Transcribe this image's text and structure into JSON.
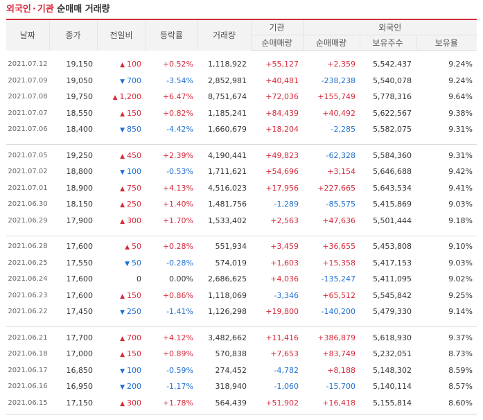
{
  "title": {
    "part1": "외국인",
    "sep": "·",
    "part2": "기관",
    "part3": "순매매 거래량"
  },
  "headers": {
    "date": "날짜",
    "close": "종가",
    "change": "전일비",
    "rate": "등락률",
    "volume": "거래량",
    "inst_group": "기관",
    "inst_net": "순매매량",
    "foreign_group": "외국인",
    "foreign_net": "순매매량",
    "foreign_holding": "보유주수",
    "foreign_ratio": "보유율"
  },
  "colors": {
    "up": "#d6293a",
    "down": "#1e6fd1"
  },
  "groups": [
    [
      {
        "date": "2021.07.12",
        "close": "19,150",
        "dir": "up",
        "change": "100",
        "rate": "+0.52%",
        "volume": "1,118,922",
        "inst": "+55,127",
        "foreign": "+2,359",
        "holding": "5,542,437",
        "ratio": "9.24%"
      },
      {
        "date": "2021.07.09",
        "close": "19,050",
        "dir": "down",
        "change": "700",
        "rate": "-3.54%",
        "volume": "2,852,981",
        "inst": "+40,481",
        "foreign": "-238,238",
        "holding": "5,540,078",
        "ratio": "9.24%"
      },
      {
        "date": "2021.07.08",
        "close": "19,750",
        "dir": "up",
        "change": "1,200",
        "rate": "+6.47%",
        "volume": "8,751,674",
        "inst": "+72,036",
        "foreign": "+155,749",
        "holding": "5,778,316",
        "ratio": "9.64%"
      },
      {
        "date": "2021.07.07",
        "close": "18,550",
        "dir": "up",
        "change": "150",
        "rate": "+0.82%",
        "volume": "1,185,241",
        "inst": "+84,439",
        "foreign": "+40,492",
        "holding": "5,622,567",
        "ratio": "9.38%"
      },
      {
        "date": "2021.07.06",
        "close": "18,400",
        "dir": "down",
        "change": "850",
        "rate": "-4.42%",
        "volume": "1,660,679",
        "inst": "+18,204",
        "foreign": "-2,285",
        "holding": "5,582,075",
        "ratio": "9.31%"
      }
    ],
    [
      {
        "date": "2021.07.05",
        "close": "19,250",
        "dir": "up",
        "change": "450",
        "rate": "+2.39%",
        "volume": "4,190,441",
        "inst": "+49,823",
        "foreign": "-62,328",
        "holding": "5,584,360",
        "ratio": "9.31%"
      },
      {
        "date": "2021.07.02",
        "close": "18,800",
        "dir": "down",
        "change": "100",
        "rate": "-0.53%",
        "volume": "1,711,621",
        "inst": "+54,696",
        "foreign": "+3,154",
        "holding": "5,646,688",
        "ratio": "9.42%"
      },
      {
        "date": "2021.07.01",
        "close": "18,900",
        "dir": "up",
        "change": "750",
        "rate": "+4.13%",
        "volume": "4,516,023",
        "inst": "+17,956",
        "foreign": "+227,665",
        "holding": "5,643,534",
        "ratio": "9.41%"
      },
      {
        "date": "2021.06.30",
        "close": "18,150",
        "dir": "up",
        "change": "250",
        "rate": "+1.40%",
        "volume": "1,481,756",
        "inst": "-1,289",
        "foreign": "-85,575",
        "holding": "5,415,869",
        "ratio": "9.03%"
      },
      {
        "date": "2021.06.29",
        "close": "17,900",
        "dir": "up",
        "change": "300",
        "rate": "+1.70%",
        "volume": "1,533,402",
        "inst": "+2,563",
        "foreign": "+47,636",
        "holding": "5,501,444",
        "ratio": "9.18%"
      }
    ],
    [
      {
        "date": "2021.06.28",
        "close": "17,600",
        "dir": "up",
        "change": "50",
        "rate": "+0.28%",
        "volume": "551,934",
        "inst": "+3,459",
        "foreign": "+36,655",
        "holding": "5,453,808",
        "ratio": "9.10%"
      },
      {
        "date": "2021.06.25",
        "close": "17,550",
        "dir": "down",
        "change": "50",
        "rate": "-0.28%",
        "volume": "574,019",
        "inst": "+1,603",
        "foreign": "+15,358",
        "holding": "5,417,153",
        "ratio": "9.03%"
      },
      {
        "date": "2021.06.24",
        "close": "17,600",
        "dir": "flat",
        "change": "0",
        "rate": "0.00%",
        "volume": "2,686,625",
        "inst": "+4,036",
        "foreign": "-135,247",
        "holding": "5,411,095",
        "ratio": "9.02%"
      },
      {
        "date": "2021.06.23",
        "close": "17,600",
        "dir": "up",
        "change": "150",
        "rate": "+0.86%",
        "volume": "1,118,069",
        "inst": "-3,346",
        "foreign": "+65,512",
        "holding": "5,545,842",
        "ratio": "9.25%"
      },
      {
        "date": "2021.06.22",
        "close": "17,450",
        "dir": "down",
        "change": "250",
        "rate": "-1.41%",
        "volume": "1,126,298",
        "inst": "+19,800",
        "foreign": "-140,200",
        "holding": "5,479,330",
        "ratio": "9.14%"
      }
    ],
    [
      {
        "date": "2021.06.21",
        "close": "17,700",
        "dir": "up",
        "change": "700",
        "rate": "+4.12%",
        "volume": "3,482,662",
        "inst": "+11,416",
        "foreign": "+386,879",
        "holding": "5,618,930",
        "ratio": "9.37%"
      },
      {
        "date": "2021.06.18",
        "close": "17,000",
        "dir": "up",
        "change": "150",
        "rate": "+0.89%",
        "volume": "570,838",
        "inst": "+7,653",
        "foreign": "+83,749",
        "holding": "5,232,051",
        "ratio": "8.73%"
      },
      {
        "date": "2021.06.17",
        "close": "16,850",
        "dir": "down",
        "change": "100",
        "rate": "-0.59%",
        "volume": "274,452",
        "inst": "-4,782",
        "foreign": "+8,188",
        "holding": "5,148,302",
        "ratio": "8.59%"
      },
      {
        "date": "2021.06.16",
        "close": "16,950",
        "dir": "down",
        "change": "200",
        "rate": "-1.17%",
        "volume": "318,940",
        "inst": "-1,060",
        "foreign": "-15,700",
        "holding": "5,140,114",
        "ratio": "8.57%"
      },
      {
        "date": "2021.06.15",
        "close": "17,150",
        "dir": "up",
        "change": "300",
        "rate": "+1.78%",
        "volume": "564,439",
        "inst": "+51,902",
        "foreign": "+16,418",
        "holding": "5,155,814",
        "ratio": "8.60%"
      }
    ]
  ]
}
